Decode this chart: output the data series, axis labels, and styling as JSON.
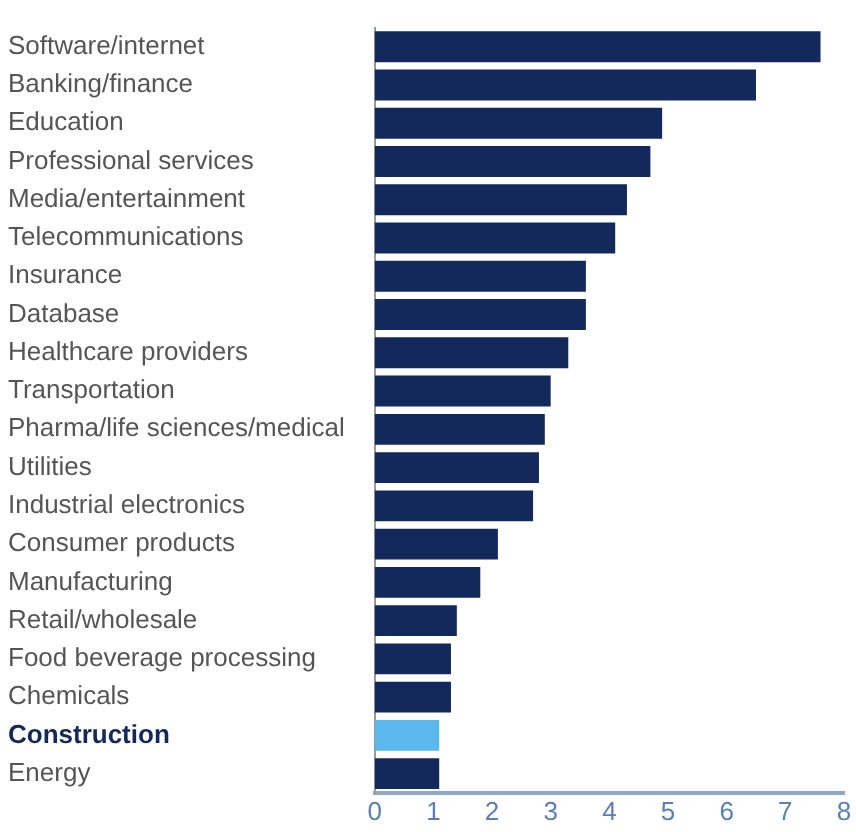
{
  "chart_data": {
    "type": "bar",
    "orientation": "horizontal",
    "categories": [
      "Software/internet",
      "Banking/finance",
      "Education",
      "Professional services",
      "Media/entertainment",
      "Telecommunications",
      "Insurance",
      "Database",
      "Healthcare providers",
      "Transportation",
      "Pharma/life sciences/medical",
      "Utilities",
      "Industrial electronics",
      "Consumer products",
      "Manufacturing",
      "Retail/wholesale",
      "Food beverage processing",
      "Chemicals",
      "Construction",
      "Energy"
    ],
    "values": [
      7.6,
      6.5,
      4.9,
      4.7,
      4.3,
      4.1,
      3.6,
      3.6,
      3.3,
      3.0,
      2.9,
      2.8,
      2.7,
      2.1,
      1.8,
      1.4,
      1.3,
      1.3,
      1.1,
      1.1
    ],
    "colors": [
      "#13295b",
      "#13295b",
      "#13295b",
      "#13295b",
      "#13295b",
      "#13295b",
      "#13295b",
      "#13295b",
      "#13295b",
      "#13295b",
      "#13295b",
      "#13295b",
      "#13295b",
      "#13295b",
      "#13295b",
      "#13295b",
      "#13295b",
      "#13295b",
      "#5bb8ec",
      "#13295b"
    ],
    "xlim": [
      0,
      8
    ],
    "xticks": [
      0,
      1,
      2,
      3,
      4,
      5,
      6,
      7,
      8
    ],
    "grid": false,
    "legend": false
  }
}
